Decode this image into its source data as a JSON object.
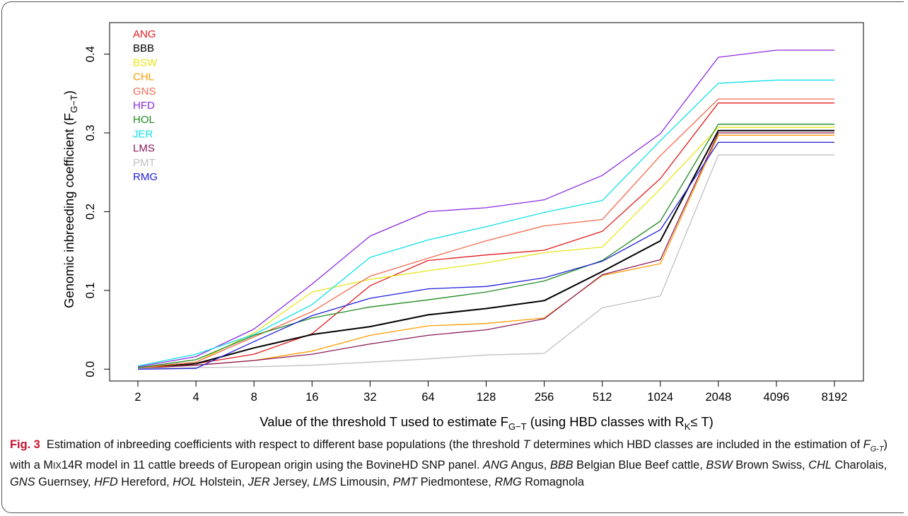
{
  "chart_data": {
    "type": "line",
    "title": "",
    "xlabel": {
      "prefix": "Value of the threshold T used to estimate F",
      "sub1": "G−T",
      "middle": " (using HBD classes with R",
      "sub2": "K",
      "suffix": "≤  T)"
    },
    "ylabel": {
      "prefix": "Genomic inbreeding coefficient (F",
      "sub": "G−T",
      "suffix": ")"
    },
    "x": [
      "2",
      "4",
      "8",
      "16",
      "32",
      "64",
      "128",
      "256",
      "512",
      "1024",
      "2048",
      "4096",
      "8192"
    ],
    "y_ticks": [
      "0.0",
      "0.1",
      "0.2",
      "0.3",
      "0.4"
    ],
    "ylim": [
      -0.015,
      0.44
    ],
    "grid": false,
    "legend_position": "top-left",
    "series": [
      {
        "name": "ANG",
        "color": "#e31a1c",
        "values": [
          0.002,
          0.007,
          0.019,
          0.045,
          0.106,
          0.138,
          0.145,
          0.151,
          0.175,
          0.242,
          0.338,
          0.338,
          0.338
        ]
      },
      {
        "name": "BBB",
        "color": "#000000",
        "values": [
          0.001,
          0.007,
          0.027,
          0.044,
          0.054,
          0.069,
          0.077,
          0.087,
          0.124,
          0.163,
          0.303,
          0.303,
          0.303
        ]
      },
      {
        "name": "BSW",
        "color": "#e6e61a",
        "values": [
          0.002,
          0.009,
          0.046,
          0.098,
          0.114,
          0.125,
          0.135,
          0.148,
          0.155,
          0.229,
          0.307,
          0.307,
          0.307
        ]
      },
      {
        "name": "CHL",
        "color": "#ff9c00",
        "values": [
          0.002,
          0.005,
          0.011,
          0.023,
          0.043,
          0.055,
          0.058,
          0.065,
          0.119,
          0.134,
          0.297,
          0.297,
          0.297
        ]
      },
      {
        "name": "GNS",
        "color": "#f46a4e",
        "values": [
          0.002,
          0.009,
          0.041,
          0.073,
          0.118,
          0.141,
          0.163,
          0.182,
          0.19,
          0.271,
          0.343,
          0.343,
          0.343
        ]
      },
      {
        "name": "HFD",
        "color": "#8a2be2",
        "values": [
          0.003,
          0.016,
          0.051,
          0.108,
          0.169,
          0.2,
          0.205,
          0.215,
          0.246,
          0.299,
          0.396,
          0.405,
          0.405
        ]
      },
      {
        "name": "HOL",
        "color": "#1f8a1f",
        "values": [
          0.002,
          0.012,
          0.043,
          0.065,
          0.079,
          0.088,
          0.098,
          0.112,
          0.138,
          0.188,
          0.311,
          0.311,
          0.311
        ]
      },
      {
        "name": "JER",
        "color": "#10e0e8",
        "values": [
          0.004,
          0.019,
          0.044,
          0.082,
          0.142,
          0.164,
          0.181,
          0.199,
          0.214,
          0.29,
          0.363,
          0.367,
          0.367
        ]
      },
      {
        "name": "LMS",
        "color": "#8b1a5a",
        "values": [
          0.001,
          0.005,
          0.011,
          0.019,
          0.032,
          0.043,
          0.05,
          0.064,
          0.12,
          0.139,
          0.3,
          0.3,
          0.3
        ]
      },
      {
        "name": "PMT",
        "color": "#c0c0c0",
        "values": [
          0.001,
          0.002,
          0.003,
          0.005,
          0.009,
          0.013,
          0.018,
          0.02,
          0.078,
          0.093,
          0.272,
          0.272,
          0.272
        ]
      },
      {
        "name": "RMG",
        "color": "#1f1fd8",
        "values": [
          0.0,
          0.001,
          0.035,
          0.068,
          0.09,
          0.102,
          0.105,
          0.116,
          0.137,
          0.177,
          0.288,
          0.288,
          0.288
        ]
      }
    ]
  },
  "caption": {
    "label": "Fig. 3",
    "text1": "Estimation of inbreeding coefficients with respect to different base populations (the threshold ",
    "t": "T",
    "text2": " determines which HBD classes are included in the estimation of ",
    "f": "F",
    "fsub": "G-T",
    "text3": ") with a M",
    "mixsc": "IX",
    "text4": "14R model in 11 cattle breeds of European origin using the BovineHD SNP panel. ",
    "abbreviations": [
      {
        "code": "ANG",
        "name": "Angus"
      },
      {
        "code": "BBB",
        "name": "Belgian Blue Beef cattle"
      },
      {
        "code": "BSW",
        "name": "Brown Swiss"
      },
      {
        "code": "CHL",
        "name": "Charolais"
      },
      {
        "code": "GNS",
        "name": "Guernsey"
      },
      {
        "code": "HFD",
        "name": "Hereford"
      },
      {
        "code": "HOL",
        "name": "Holstein"
      },
      {
        "code": "JER",
        "name": "Jersey"
      },
      {
        "code": "LMS",
        "name": "Limousin"
      },
      {
        "code": "PMT",
        "name": "Piedmontese"
      },
      {
        "code": "RMG",
        "name": "Romagnola"
      }
    ]
  }
}
